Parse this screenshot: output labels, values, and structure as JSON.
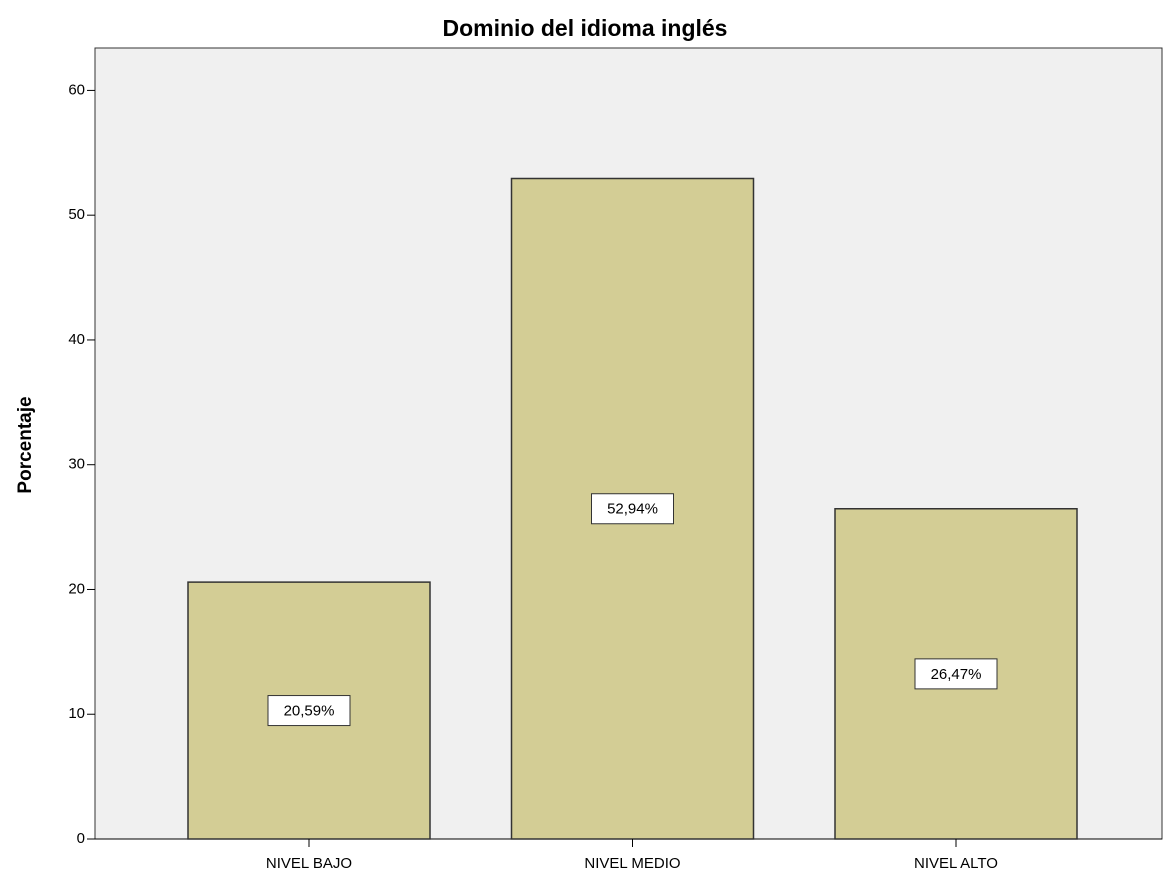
{
  "chart_data": {
    "type": "bar",
    "title": "Dominio del idioma inglés",
    "y_label": "Porcentaje",
    "categories": [
      "NIVEL BAJO",
      "NIVEL MEDIO",
      "NIVEL ALTO"
    ],
    "values": [
      20.59,
      52.94,
      26.47
    ],
    "value_labels": [
      "20,59%",
      "52,94%",
      "26,47%"
    ],
    "color": "#d3cd95",
    "ylim": [
      0,
      63.4
    ],
    "yticks": [
      0,
      10,
      20,
      30,
      40,
      50,
      60
    ],
    "grid": false
  }
}
